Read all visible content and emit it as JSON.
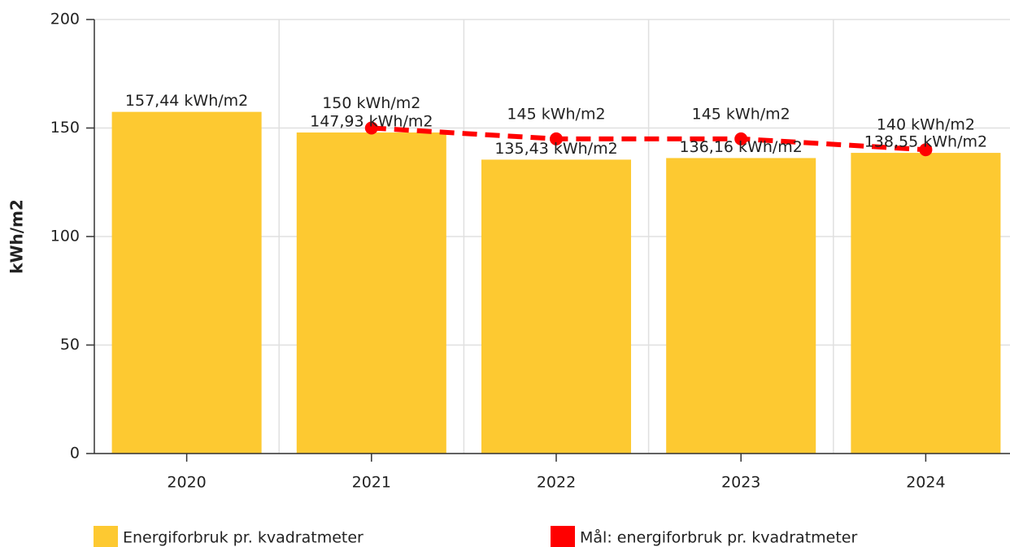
{
  "chart_data": {
    "type": "bar",
    "y_label": "kWh/m2",
    "categories": [
      "2020",
      "2021",
      "2022",
      "2023",
      "2024"
    ],
    "series": [
      {
        "name": "Energiforbruk pr. kvadratmeter",
        "type": "bar",
        "color": "#fdc931",
        "values": [
          157.44,
          147.93,
          135.43,
          136.16,
          138.55
        ],
        "value_labels": [
          "157,44 kWh/m2",
          "147,93 kWh/m2",
          "135,43 kWh/m2",
          "136,16 kWh/m2",
          "138,55 kWh/m2"
        ]
      },
      {
        "name": "Mål: energiforbruk pr. kvadratmeter",
        "type": "line",
        "color": "#ff0000",
        "values": [
          null,
          150,
          145,
          145,
          140
        ],
        "value_labels": [
          null,
          "150 kWh/m2",
          "145 kWh/m2",
          "145 kWh/m2",
          "140 kWh/m2"
        ]
      }
    ],
    "ylim": [
      0,
      200
    ],
    "yticks": [
      0,
      50,
      100,
      150,
      200
    ],
    "grid": true,
    "legend": "bottom"
  }
}
